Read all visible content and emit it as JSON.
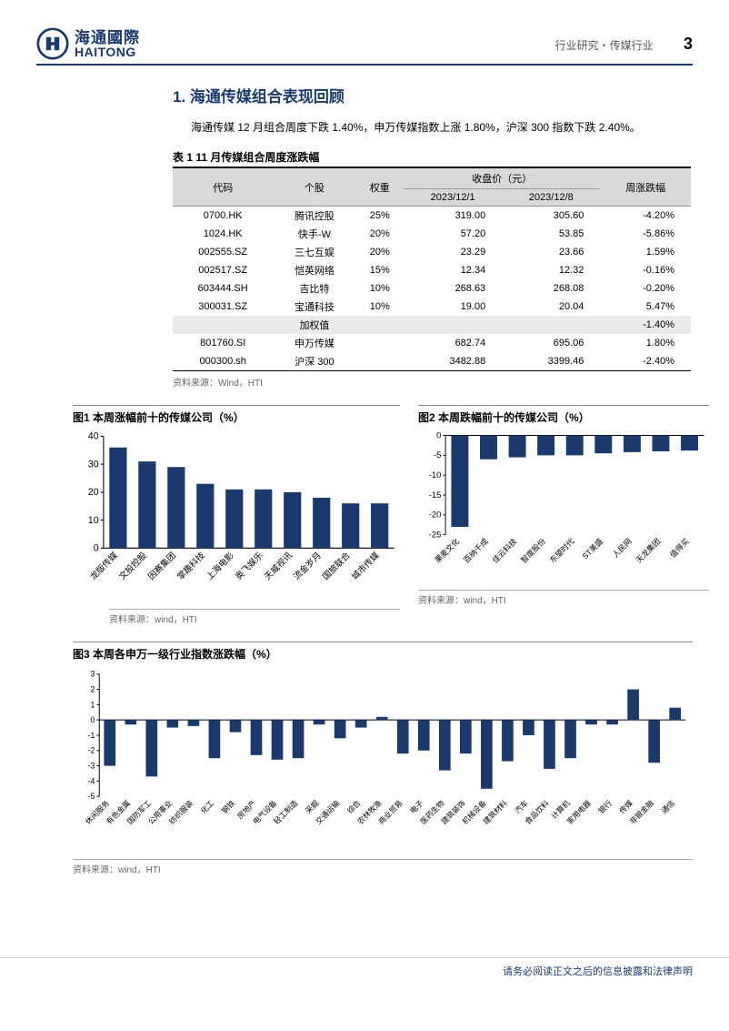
{
  "header": {
    "category": "行业研究・传媒行业",
    "page": "3"
  },
  "logo": {
    "cn": "海通國際",
    "en": "HAITONG"
  },
  "section": {
    "title": "1.  海通传媒组合表现回顾",
    "intro": "海通传媒 12 月组合周度下跌 1.40%，申万传媒指数上涨 1.80%，沪深 300 指数下跌 2.40%。"
  },
  "table": {
    "title": "表 1 11 月传媒组合周度涨跌幅",
    "headers": {
      "code": "代码",
      "stock": "个股",
      "weight": "权重",
      "price": "收盘价（元）",
      "d1": "2023/12/1",
      "d2": "2023/12/8",
      "chg": "周涨跌幅"
    },
    "rows": [
      {
        "code": "0700.HK",
        "stock": "腾讯控股",
        "weight": "25%",
        "d1": "319.00",
        "d2": "305.60",
        "chg": "-4.20%"
      },
      {
        "code": "1024.HK",
        "stock": "快手-W",
        "weight": "20%",
        "d1": "57.20",
        "d2": "53.85",
        "chg": "-5.86%"
      },
      {
        "code": "002555.SZ",
        "stock": "三七互娱",
        "weight": "20%",
        "d1": "23.29",
        "d2": "23.66",
        "chg": "1.59%"
      },
      {
        "code": "002517.SZ",
        "stock": "恺英网络",
        "weight": "15%",
        "d1": "12.34",
        "d2": "12.32",
        "chg": "-0.16%"
      },
      {
        "code": "603444.SH",
        "stock": "吉比特",
        "weight": "10%",
        "d1": "268.63",
        "d2": "268.08",
        "chg": "-0.20%"
      },
      {
        "code": "300031.SZ",
        "stock": "宝通科技",
        "weight": "10%",
        "d1": "19.00",
        "d2": "20.04",
        "chg": "5.47%"
      }
    ],
    "weighted": {
      "stock": "加权值",
      "chg": "-1.40%"
    },
    "index": [
      {
        "code": "801760.SI",
        "stock": "申万传媒",
        "d1": "682.74",
        "d2": "695.06",
        "chg": "1.80%"
      },
      {
        "code": "000300.sh",
        "stock": "沪深 300",
        "d1": "3482.88",
        "d2": "3399.46",
        "chg": "-2.40%"
      }
    ],
    "source": "资料来源：Wind，HTI"
  },
  "chart1": {
    "title": "图1  本周涨幅前十的传媒公司（%）",
    "type": "bar",
    "bar_color": "#1a3a6e",
    "ylim": [
      0,
      40
    ],
    "yticks": [
      0,
      10,
      20,
      30,
      40
    ],
    "categories": [
      "龙版传媒",
      "文投控股",
      "因赛集团",
      "掌趣科技",
      "上海电影",
      "奥飞娱乐",
      "天威视讯",
      "流金岁月",
      "国旅联合",
      "城市传媒"
    ],
    "values": [
      36,
      31,
      29,
      23,
      21,
      21,
      20,
      18,
      16,
      16
    ],
    "source": "资料来源：wind，HTI"
  },
  "chart2": {
    "title": "图2  本周跌幅前十的传媒公司（%）",
    "type": "bar",
    "bar_color": "#1a3a6e",
    "ylim": [
      -25,
      0
    ],
    "yticks": [
      -25,
      -20,
      -15,
      -10,
      -5,
      0
    ],
    "categories": [
      "果麦文化",
      "百纳千成",
      "佳云科技",
      "智度股份",
      "东望时代",
      "ST美盛",
      "人民网",
      "天龙集团",
      "值得买"
    ],
    "values": [
      -23,
      -6,
      -5.5,
      -5,
      -5,
      -4.5,
      -4.2,
      -4,
      -3.8
    ],
    "source": "资料来源：wind，HTI"
  },
  "chart3": {
    "title": "图3  本周各申万一级行业指数涨跌幅（%）",
    "type": "bar",
    "bar_color": "#1a3a6e",
    "ylim": [
      -5,
      3
    ],
    "yticks": [
      -5,
      -4,
      -3,
      -2,
      -1,
      0,
      1,
      2,
      3
    ],
    "categories": [
      "休闲服务",
      "有色金属",
      "国防军工",
      "公用事业",
      "纺织服装",
      "化工",
      "钢铁",
      "房地产",
      "电气设备",
      "轻工制造",
      "采掘",
      "交通运输",
      "综合",
      "农林牧渔",
      "商业贸易",
      "电子",
      "医药生物",
      "建筑装饰",
      "机械设备",
      "建筑材料",
      "汽车",
      "食品饮料",
      "计算机",
      "家用电器",
      "银行",
      "传媒",
      "非银金融",
      "通信"
    ],
    "values": [
      -3,
      -0.3,
      -3.7,
      -0.5,
      -0.4,
      -2.5,
      -0.8,
      -2.3,
      -2.6,
      -2.5,
      -0.3,
      -1.2,
      -0.5,
      0.2,
      -2.2,
      -2,
      -3.3,
      -2.2,
      -4.5,
      -2.7,
      -1,
      -3.2,
      -2.5,
      -0.3,
      -0.3,
      2,
      -2.8,
      0.8
    ],
    "source": "资料来源：wind，HTI"
  },
  "footer": "请务必阅读正文之后的信息披露和法律声明"
}
